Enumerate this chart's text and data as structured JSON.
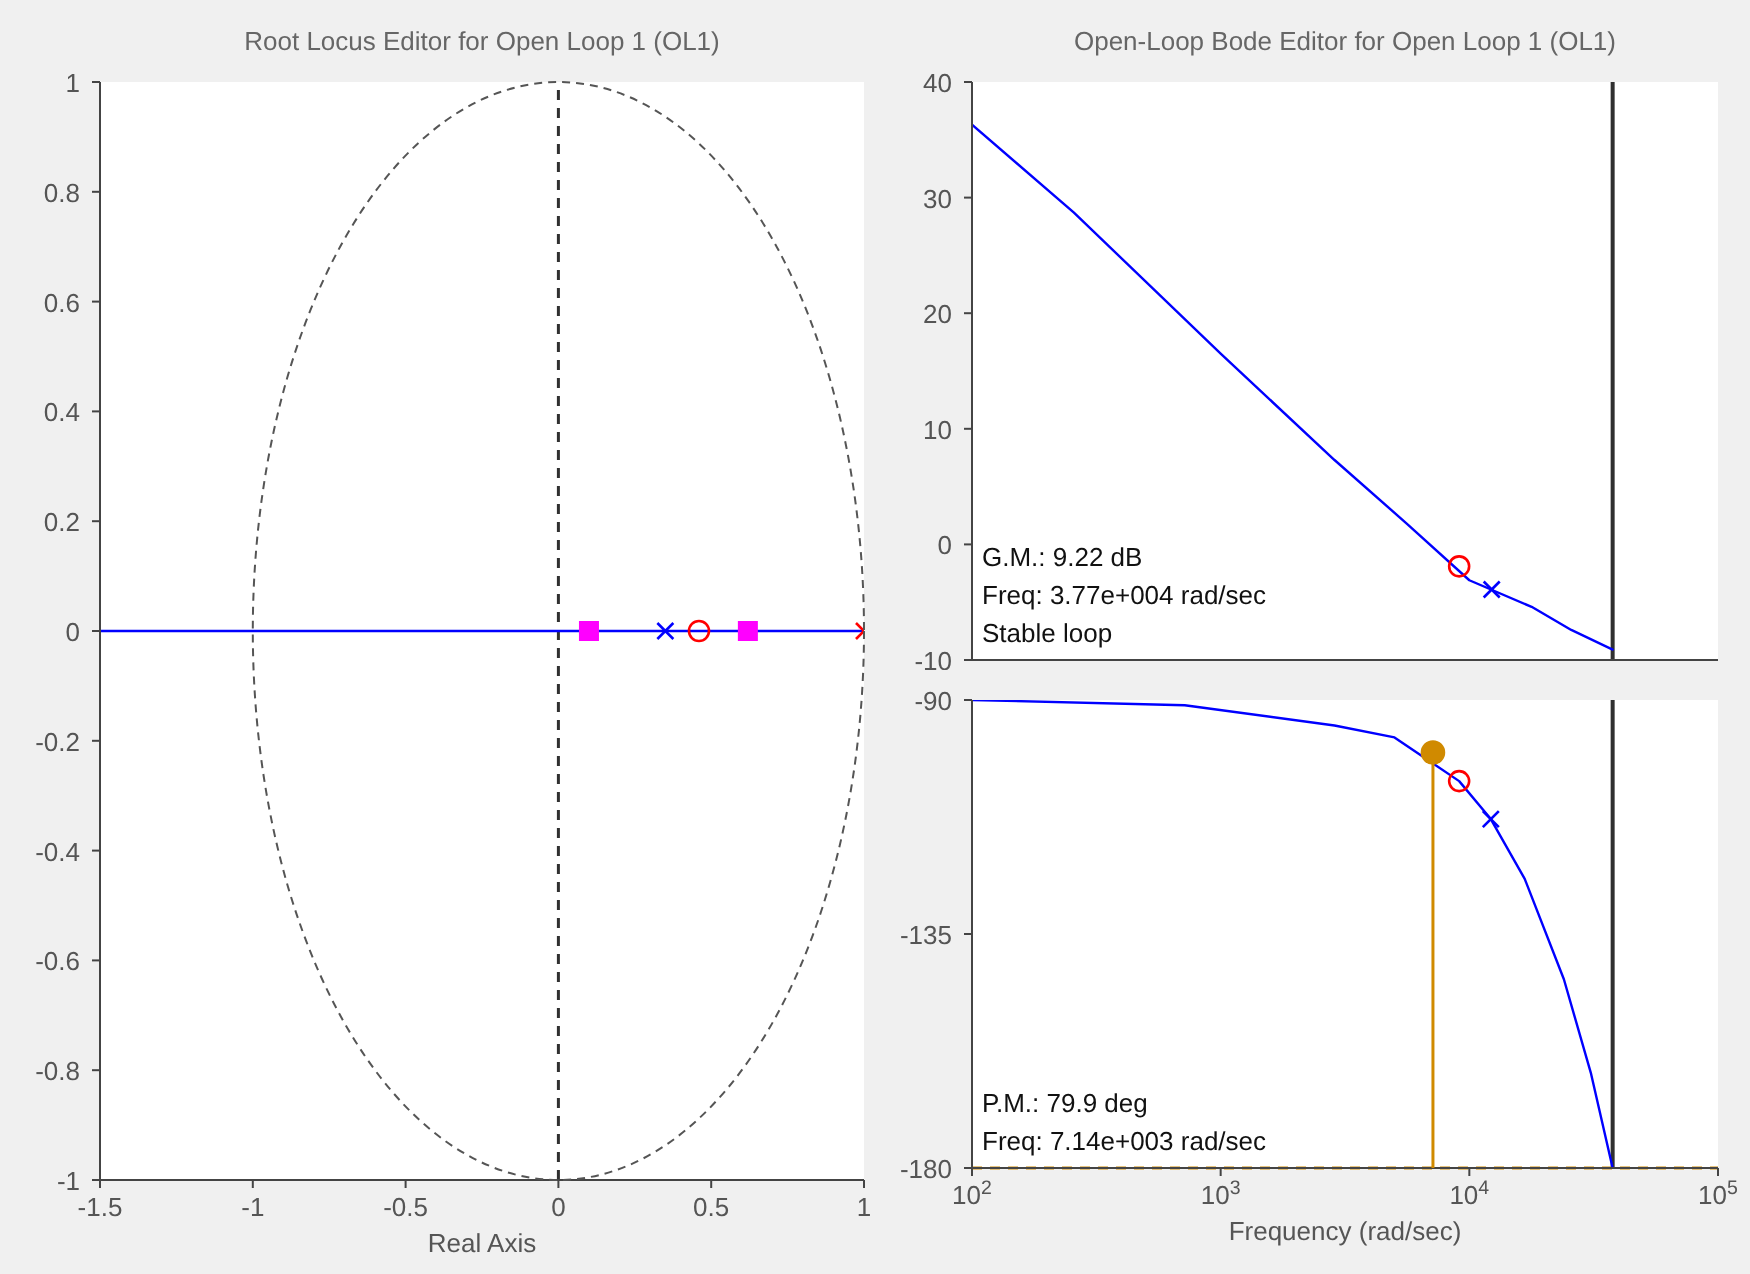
{
  "chart_data": [
    {
      "type": "line",
      "title": "Root Locus Editor for Open Loop 1 (OL1)",
      "xlabel": "Real Axis",
      "xlim": [
        -1.5,
        1
      ],
      "xticks": [
        -1.5,
        -1,
        -0.5,
        0,
        0.5,
        1
      ],
      "ylim": [
        -1,
        1
      ],
      "yticks": [
        -1,
        -0.8,
        -0.6,
        -0.4,
        -0.2,
        0,
        0.2,
        0.4,
        0.6,
        0.8,
        1
      ],
      "ref_lines": [
        {
          "axis": "x",
          "value": 0,
          "color": "#303030",
          "line_style": "dashed"
        }
      ],
      "series": [
        {
          "color": "#0000ff",
          "x": [
            -1.5,
            1
          ],
          "values": [
            0,
            0
          ]
        },
        {
          "type": "scatter",
          "color": "#ff00ff",
          "marker": "square",
          "x": [
            0.1,
            0.62
          ],
          "values": [
            0,
            0
          ]
        },
        {
          "type": "scatter",
          "color": "#0000ff",
          "marker": "cross",
          "x": [
            0.35
          ],
          "values": [
            0
          ]
        },
        {
          "type": "scatter",
          "color": "#ff0000",
          "marker": "circle",
          "x": [
            0.46
          ],
          "values": [
            0
          ]
        },
        {
          "type": "scatter",
          "color": "#ff0000",
          "marker": "cross",
          "x": [
            1
          ],
          "values": [
            0
          ]
        }
      ]
    },
    {
      "type": "line",
      "title": "Open-Loop Bode Editor for Open Loop 1 (OL1)",
      "log": "x",
      "xlim": [
        100,
        100000
      ],
      "xticks": [
        100,
        1000,
        10000,
        100000
      ],
      "tick_labels": "y",
      "ylim": [
        -10,
        40
      ],
      "yticks": [
        -10,
        0,
        10,
        20,
        30,
        40
      ],
      "annotations": [
        "G.M.: 9.22 dB",
        "Freq: 3.77e+004 rad/sec",
        "Stable loop"
      ],
      "ref_lines": [
        {
          "axis": "x",
          "value": 37700,
          "color": "#303030"
        }
      ],
      "series": [
        {
          "color": "#0000ff",
          "x": [
            100,
            257,
            1000,
            2870,
            5600,
            10000,
            17800,
            25700,
            37700
          ],
          "values": [
            36.3,
            28.7,
            16.5,
            7.3,
            1.8,
            -3.1,
            -5.4,
            -7.4,
            -9.1
          ]
        },
        {
          "type": "scatter",
          "color": "#ff0000",
          "marker": "circle",
          "x": [
            9100
          ],
          "values": [
            -1.9
          ]
        },
        {
          "type": "scatter",
          "color": "#0000ff",
          "marker": "cross",
          "x": [
            12300
          ],
          "values": [
            -3.9
          ]
        }
      ]
    },
    {
      "type": "line",
      "xlabel": "Frequency (rad/sec)",
      "log": "x",
      "xlim": [
        100,
        100000
      ],
      "xticks": [
        {
          "value": 100,
          "label": "10$^{2}$"
        },
        {
          "value": 1000,
          "label": "10$^{3}$"
        },
        {
          "value": 10000,
          "label": "10$^{4}$"
        },
        {
          "value": 100000,
          "label": "10$^{5}$"
        }
      ],
      "ylim": [
        -180,
        -90
      ],
      "yticks": [
        -180,
        -135,
        -90
      ],
      "annotations": [
        "P.M.: 79.9 deg",
        "Freq: 7.14e+003 rad/sec"
      ],
      "ref_lines": [
        {
          "axis": "x",
          "value": 37700,
          "color": "#303030"
        },
        {
          "axis": "y",
          "value": -180,
          "color": "#d08a00",
          "line_style": "dashed"
        }
      ],
      "series": [
        {
          "color": "#0000ff",
          "x": [
            100,
            717,
            2870,
            5000,
            9100,
            12200,
            16700,
            24000,
            30800,
            37700
          ],
          "values": [
            -90,
            -91,
            -94.9,
            -97.2,
            -105.6,
            -112.9,
            -124.4,
            -143.7,
            -161.7,
            -180
          ]
        },
        {
          "type": "scatter",
          "color": "#ff0000",
          "marker": "circle",
          "x": [
            9100
          ],
          "values": [
            -105.6
          ]
        },
        {
          "type": "scatter",
          "color": "#0000ff",
          "marker": "cross",
          "x": [
            12200
          ],
          "values": [
            -112.9
          ]
        },
        {
          "type": "scatter",
          "color": "#d08a00",
          "marker": "circle",
          "x": [
            7140
          ],
          "values": [
            -100.1
          ],
          "errors": [
            [
              -180,
              -100.1
            ]
          ]
        }
      ]
    }
  ]
}
